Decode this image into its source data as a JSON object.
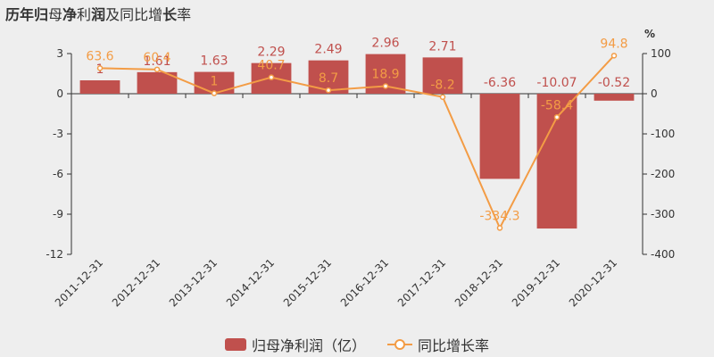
{
  "title_bold_1": "历年归",
  "title_mid_1": "母",
  "title_bold_2": "净",
  "title_mid_2": "利",
  "title_bold_3": "润",
  "title_rest": "及同比增",
  "title_bold_4": "长",
  "title_tail": "率",
  "chart_data": {
    "type": "bar+line",
    "categories": [
      "2011-12-31",
      "2012-12-31",
      "2013-12-31",
      "2014-12-31",
      "2015-12-31",
      "2016-12-31",
      "2017-12-31",
      "2018-12-31",
      "2019-12-31",
      "2020-12-31"
    ],
    "series": [
      {
        "name": "归母净利润（亿）",
        "type": "bar",
        "axis": "left",
        "color": "#c0504d",
        "values": [
          1,
          1.61,
          1.63,
          2.29,
          2.49,
          2.96,
          2.71,
          -6.36,
          -10.07,
          -0.52
        ],
        "labels": [
          "1",
          "1.61",
          "1.63",
          "2.29",
          "2.49",
          "2.96",
          "2.71",
          "-6.36",
          "-10.07",
          "-0.52"
        ]
      },
      {
        "name": "同比增长率",
        "type": "line",
        "axis": "right",
        "color": "#f39c45",
        "values": [
          63.6,
          60.4,
          1,
          40.7,
          8.7,
          18.9,
          -8.2,
          -334.3,
          -58.4,
          94.8
        ],
        "labels": [
          "63.6",
          "60.4",
          "1",
          "40.7",
          "8.7",
          "18.9",
          "-8.2",
          "-334.3",
          "-58.4",
          "94.8"
        ]
      }
    ],
    "y_left": {
      "range": [
        -12,
        3
      ],
      "ticks": [
        "3",
        "0",
        "-3",
        "-6",
        "-9",
        "-12"
      ]
    },
    "y_right": {
      "range": [
        -400,
        100
      ],
      "ticks": [
        "100",
        "0",
        "-100",
        "-200",
        "-300",
        "-400"
      ],
      "unit": "%"
    },
    "legend_position": "bottom-center"
  }
}
